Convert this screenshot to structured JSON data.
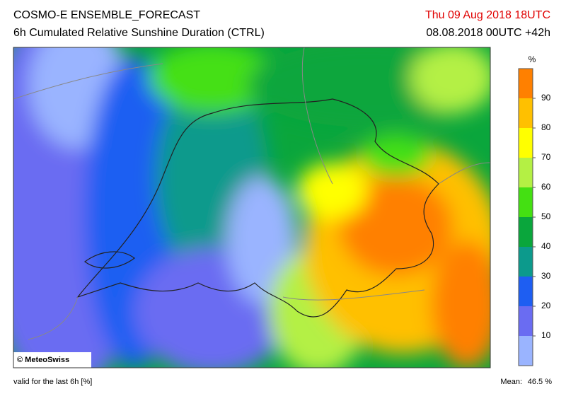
{
  "header": {
    "title": "COSMO-E ENSEMBLE_FORECAST",
    "subtitle": "6h Cumulated Relative Sunshine Duration (CTRL)",
    "valid_time": "Thu 09 Aug 2018 18UTC",
    "run": "08.08.2018 00UTC +42h"
  },
  "map": {
    "copyright": "© MeteoSwiss"
  },
  "colorbar": {
    "unit": "%",
    "lim": [
      0,
      100
    ],
    "ticks": [
      10,
      20,
      30,
      40,
      50,
      60,
      70,
      80,
      90
    ],
    "colors": [
      "#9ab4ff",
      "#6a6cf2",
      "#1e5ef2",
      "#0c9a8c",
      "#0aa63c",
      "#44e012",
      "#b4f044",
      "#ffff00",
      "#ffc000",
      "#ff8000"
    ]
  },
  "footer": {
    "validity": "valid for the last 6h [%]",
    "mean_label": "Mean:",
    "mean": "46.5 %"
  }
}
